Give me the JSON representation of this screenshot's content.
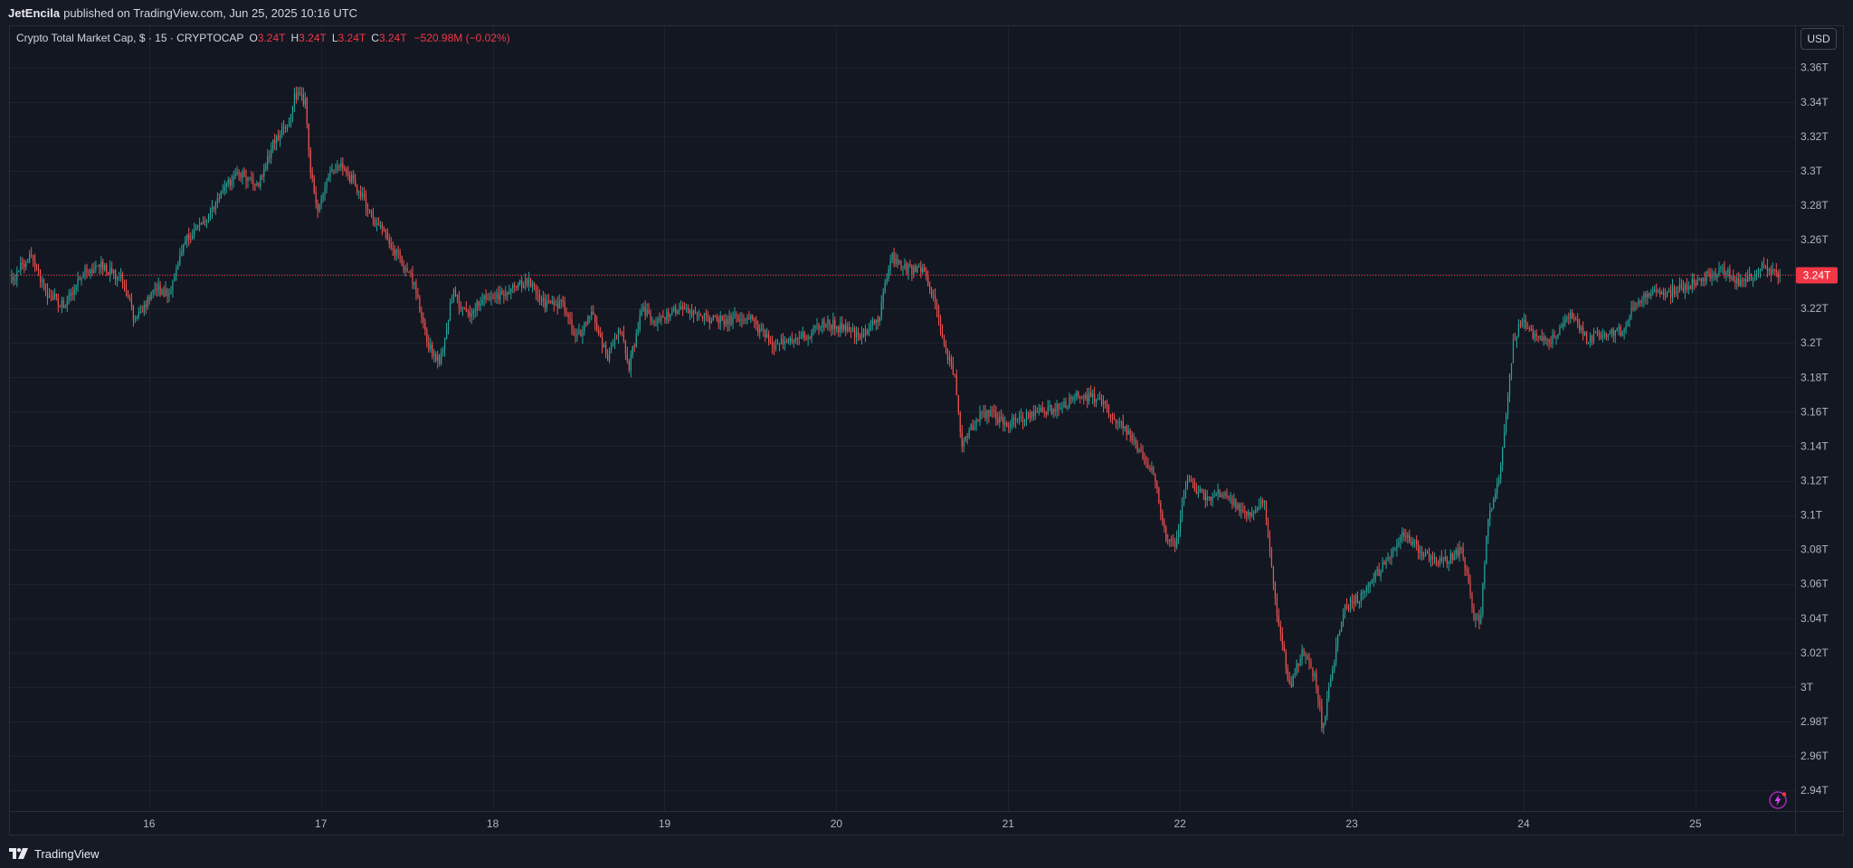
{
  "header": {
    "publisher": "JetEncila",
    "published_text": "published on TradingView.com, Jun 25, 2025 10:16 UTC"
  },
  "legend": {
    "symbol_title": "Crypto Total Market Cap, $ · 15 · CRYPTOCAP",
    "open_label": "O",
    "open_value": "3.24T",
    "high_label": "H",
    "high_value": "3.24T",
    "low_label": "L",
    "low_value": "3.24T",
    "close_label": "C",
    "close_value": "3.24T",
    "change_text": "−520.98M (−0.02%)"
  },
  "currency_button": {
    "label": "USD"
  },
  "footer": {
    "brand": "TradingView"
  },
  "colors": {
    "background": "#131722",
    "grid": "#1e222d",
    "up": "#26a69a",
    "down": "#ef5350",
    "current_price": "#f23645",
    "axis_text": "#b2b5be"
  },
  "chart_data": {
    "type": "candlestick",
    "interval": "15",
    "y_axis": {
      "unit": "T",
      "ylim": [
        2.928,
        3.384
      ],
      "ticks": [
        "2.94T",
        "2.96T",
        "2.98T",
        "3T",
        "3.02T",
        "3.04T",
        "3.06T",
        "3.08T",
        "3.1T",
        "3.12T",
        "3.14T",
        "3.16T",
        "3.18T",
        "3.2T",
        "3.22T",
        "3.24T",
        "3.26T",
        "3.28T",
        "3.3T",
        "3.32T",
        "3.34T",
        "3.36T"
      ],
      "tick_values": [
        2.94,
        2.96,
        2.98,
        3.0,
        3.02,
        3.04,
        3.06,
        3.08,
        3.1,
        3.12,
        3.14,
        3.16,
        3.18,
        3.2,
        3.22,
        3.24,
        3.26,
        3.28,
        3.3,
        3.32,
        3.34,
        3.36
      ]
    },
    "x_axis": {
      "ticks": [
        "16",
        "17",
        "18",
        "19",
        "20",
        "21",
        "22",
        "23",
        "24",
        "25"
      ],
      "tick_days": [
        16,
        17,
        18,
        19,
        20,
        21,
        22,
        23,
        24,
        25
      ],
      "xlim": [
        15.19,
        25.58
      ]
    },
    "current_price": {
      "value": 3.2393,
      "label": "3.24T"
    },
    "grid": true,
    "price_path": [
      [
        15.2,
        3.235
      ],
      [
        15.32,
        3.252
      ],
      [
        15.42,
        3.228
      ],
      [
        15.52,
        3.222
      ],
      [
        15.62,
        3.24
      ],
      [
        15.74,
        3.245
      ],
      [
        15.86,
        3.236
      ],
      [
        15.93,
        3.212
      ],
      [
        16.05,
        3.232
      ],
      [
        16.12,
        3.228
      ],
      [
        16.22,
        3.26
      ],
      [
        16.35,
        3.272
      ],
      [
        16.45,
        3.292
      ],
      [
        16.55,
        3.298
      ],
      [
        16.65,
        3.292
      ],
      [
        16.74,
        3.318
      ],
      [
        16.82,
        3.328
      ],
      [
        16.86,
        3.345
      ],
      [
        16.92,
        3.34
      ],
      [
        16.95,
        3.3
      ],
      [
        16.99,
        3.275
      ],
      [
        17.05,
        3.295
      ],
      [
        17.12,
        3.305
      ],
      [
        17.22,
        3.29
      ],
      [
        17.32,
        3.272
      ],
      [
        17.45,
        3.252
      ],
      [
        17.55,
        3.235
      ],
      [
        17.63,
        3.2
      ],
      [
        17.7,
        3.188
      ],
      [
        17.78,
        3.23
      ],
      [
        17.86,
        3.215
      ],
      [
        17.94,
        3.225
      ],
      [
        18.02,
        3.225
      ],
      [
        18.12,
        3.232
      ],
      [
        18.22,
        3.235
      ],
      [
        18.32,
        3.222
      ],
      [
        18.42,
        3.222
      ],
      [
        18.5,
        3.202
      ],
      [
        18.58,
        3.218
      ],
      [
        18.68,
        3.192
      ],
      [
        18.75,
        3.21
      ],
      [
        18.8,
        3.185
      ],
      [
        18.88,
        3.22
      ],
      [
        18.95,
        3.212
      ],
      [
        19.1,
        3.22
      ],
      [
        19.2,
        3.215
      ],
      [
        19.35,
        3.213
      ],
      [
        19.5,
        3.215
      ],
      [
        19.65,
        3.198
      ],
      [
        19.75,
        3.203
      ],
      [
        19.85,
        3.205
      ],
      [
        19.95,
        3.212
      ],
      [
        20.05,
        3.208
      ],
      [
        20.15,
        3.205
      ],
      [
        20.25,
        3.212
      ],
      [
        20.33,
        3.25
      ],
      [
        20.42,
        3.243
      ],
      [
        20.52,
        3.242
      ],
      [
        20.58,
        3.225
      ],
      [
        20.63,
        3.2
      ],
      [
        20.7,
        3.18
      ],
      [
        20.74,
        3.14
      ],
      [
        20.82,
        3.155
      ],
      [
        20.9,
        3.16
      ],
      [
        21.0,
        3.152
      ],
      [
        21.12,
        3.158
      ],
      [
        21.22,
        3.16
      ],
      [
        21.32,
        3.163
      ],
      [
        21.42,
        3.17
      ],
      [
        21.52,
        3.168
      ],
      [
        21.6,
        3.16
      ],
      [
        21.7,
        3.148
      ],
      [
        21.78,
        3.135
      ],
      [
        21.85,
        3.127
      ],
      [
        21.93,
        3.085
      ],
      [
        21.99,
        3.083
      ],
      [
        22.05,
        3.122
      ],
      [
        22.15,
        3.11
      ],
      [
        22.25,
        3.113
      ],
      [
        22.35,
        3.105
      ],
      [
        22.42,
        3.1
      ],
      [
        22.5,
        3.108
      ],
      [
        22.58,
        3.04
      ],
      [
        22.65,
        3.0
      ],
      [
        22.72,
        3.02
      ],
      [
        22.8,
        3.005
      ],
      [
        22.84,
        2.975
      ],
      [
        22.9,
        3.012
      ],
      [
        22.96,
        3.045
      ],
      [
        23.05,
        3.052
      ],
      [
        23.15,
        3.065
      ],
      [
        23.25,
        3.078
      ],
      [
        23.32,
        3.09
      ],
      [
        23.42,
        3.078
      ],
      [
        23.5,
        3.072
      ],
      [
        23.6,
        3.075
      ],
      [
        23.65,
        3.082
      ],
      [
        23.72,
        3.04
      ],
      [
        23.76,
        3.04
      ],
      [
        23.8,
        3.095
      ],
      [
        23.86,
        3.118
      ],
      [
        23.9,
        3.15
      ],
      [
        23.95,
        3.2
      ],
      [
        24.0,
        3.215
      ],
      [
        24.08,
        3.202
      ],
      [
        24.18,
        3.202
      ],
      [
        24.28,
        3.217
      ],
      [
        24.38,
        3.202
      ],
      [
        24.48,
        3.205
      ],
      [
        24.58,
        3.207
      ],
      [
        24.68,
        3.225
      ],
      [
        24.76,
        3.228
      ],
      [
        24.84,
        3.228
      ],
      [
        24.92,
        3.232
      ],
      [
        25.0,
        3.235
      ],
      [
        25.1,
        3.24
      ],
      [
        25.18,
        3.242
      ],
      [
        25.26,
        3.235
      ],
      [
        25.34,
        3.238
      ],
      [
        25.4,
        3.245
      ],
      [
        25.45,
        3.24
      ],
      [
        25.5,
        3.239
      ]
    ],
    "candles_per_day": 96
  }
}
